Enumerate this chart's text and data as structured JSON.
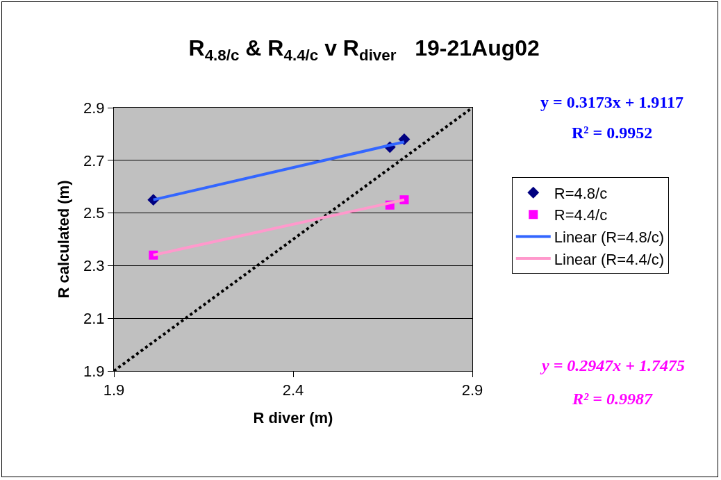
{
  "chart_data": {
    "type": "scatter",
    "title": "R$_{4.8/c}$ & R$_{4.4/c}$ v R$_{diver}$   19-21Aug02",
    "xlabel": "R diver (m)",
    "ylabel": "R calculated (m)",
    "series": [
      {
        "type": "line",
        "color": "#000000",
        "line_style": "dotted",
        "marker": "none",
        "x": [
          1.9,
          2.9
        ],
        "values": [
          1.9,
          2.9
        ]
      },
      {
        "name": "R=4.8/c",
        "color": "#000080",
        "marker": "diamond",
        "x": [
          2.01,
          2.67,
          2.71
        ],
        "values": [
          2.55,
          2.75,
          2.78
        ]
      },
      {
        "name": "R=4.4/c",
        "color": "#ff00ff",
        "marker": "square",
        "x": [
          2.01,
          2.67,
          2.71
        ],
        "values": [
          2.34,
          2.53,
          2.55
        ]
      },
      {
        "name": "Linear (R=4.8/c)",
        "type": "line",
        "color": "#3366ff",
        "line_style": "solid",
        "marker": "none",
        "x": [
          2.01,
          2.71
        ],
        "values": [
          2.55,
          2.77
        ]
      },
      {
        "name": "Linear (R=4.4/c)",
        "type": "line",
        "color": "#ff99cc",
        "line_style": "solid",
        "marker": "none",
        "x": [
          2.01,
          2.71
        ],
        "values": [
          2.34,
          2.55
        ]
      }
    ],
    "annotations": [
      "y = 0.3173x + 1.9117",
      "R² = 0.9952",
      "y = 0.2947x + 1.7475",
      "R² = 0.9987"
    ],
    "xlim": [
      1.9,
      2.9
    ],
    "xticks": [
      1.9,
      2.4,
      2.9
    ],
    "ylim": [
      1.9,
      2.9
    ],
    "yticks": [
      1.9,
      2.1,
      2.3,
      2.5,
      2.7,
      2.9
    ],
    "grid": "y",
    "legend": "right"
  }
}
